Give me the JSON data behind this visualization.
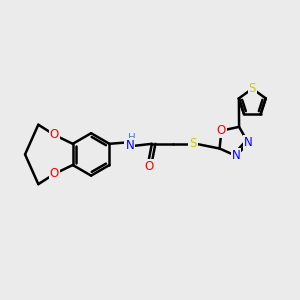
{
  "background_color": "#ebebeb",
  "bond_color": "#000000",
  "bond_width": 1.8,
  "atom_colors": {
    "O": "#ff0000",
    "N": "#0000ff",
    "S": "#cccc00",
    "H_color": "#4682b4"
  },
  "font_size_atom": 8.5
}
